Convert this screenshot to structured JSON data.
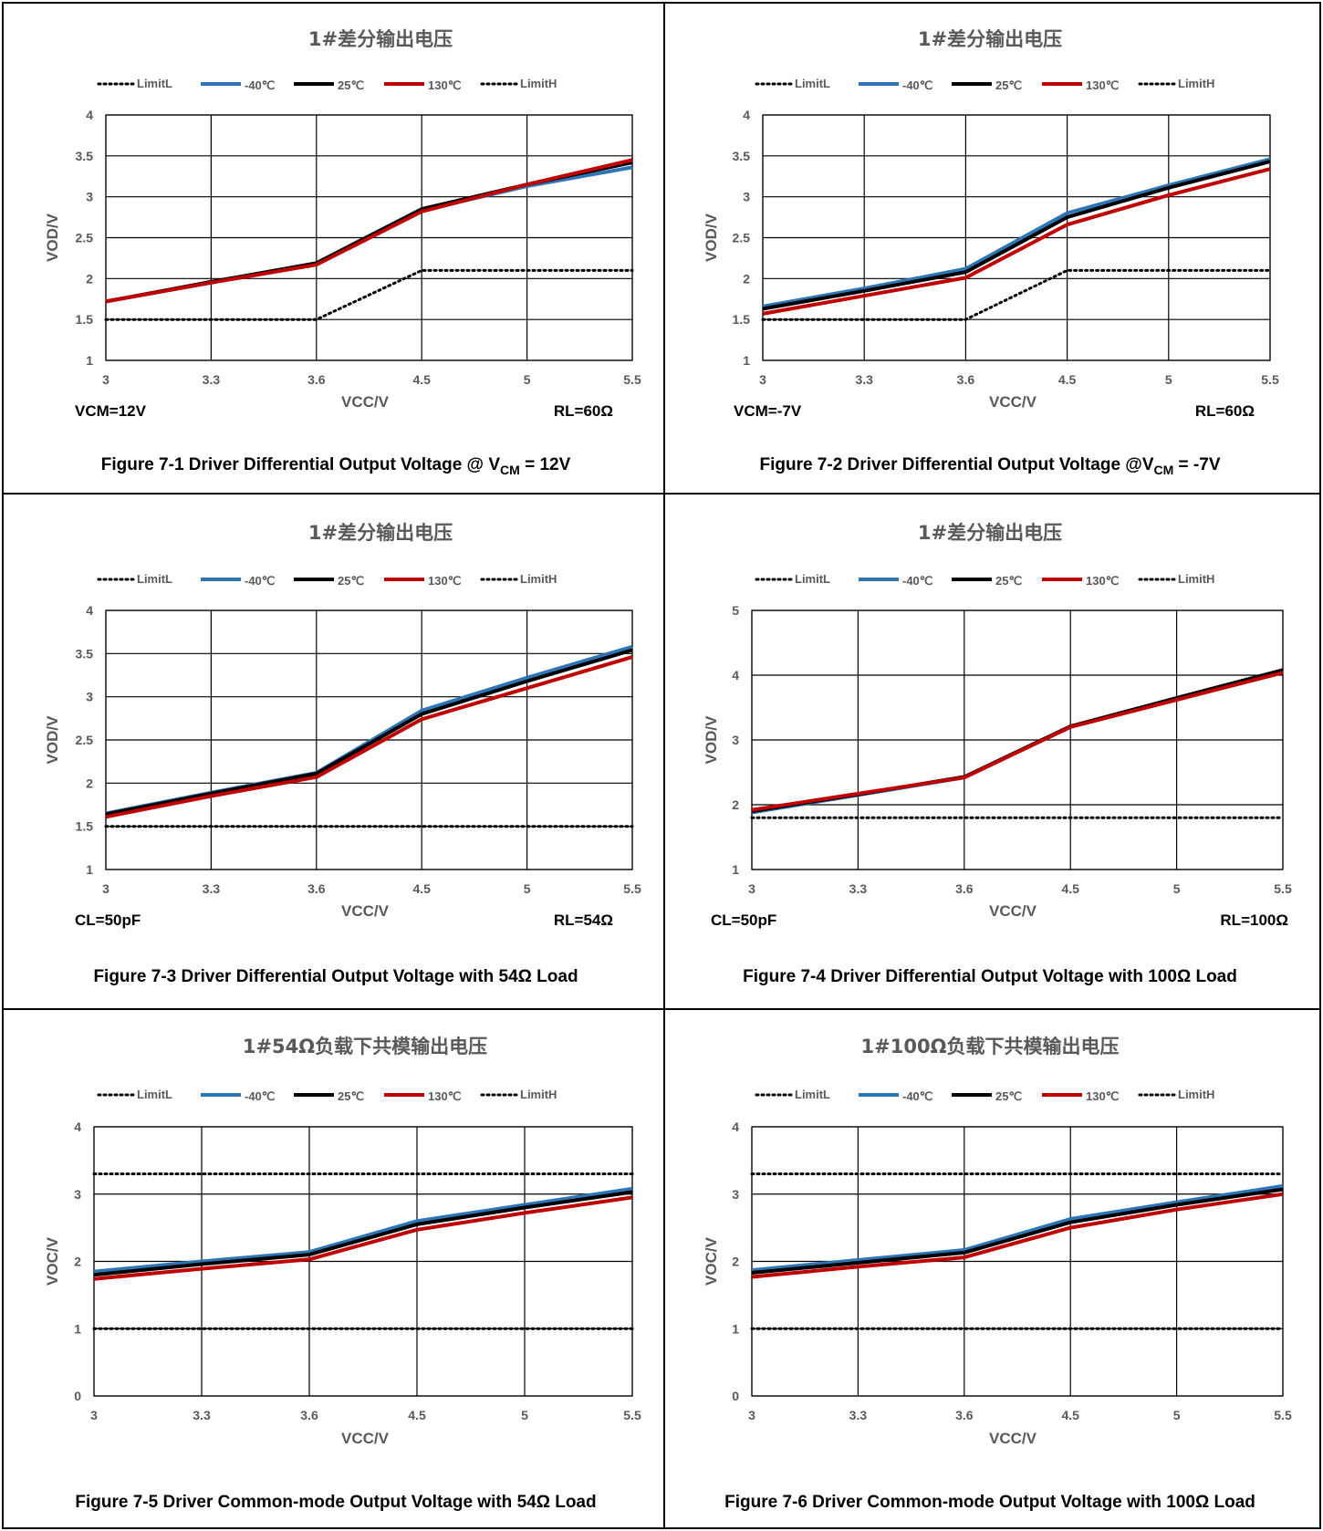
{
  "legend_labels": [
    "LimitL",
    "-40℃",
    "25℃",
    "130℃",
    "LimitH"
  ],
  "colors": {
    "limit": "#000000",
    "m40": "#2E75B6",
    "c25": "#000000",
    "c130": "#C00000",
    "text": "#595959"
  },
  "chart_data": [
    {
      "type": "line",
      "title": "1#差分输出电压",
      "caption": {
        "pre": "Figure 7-1 Driver Differential Output Voltage @ V",
        "sub": "CM",
        "post": " = 12V"
      },
      "note_left": "VCM=12V",
      "note_right": "RL=60Ω",
      "xlabel": "VCC/V",
      "ylabel": "VOD/V",
      "categories": [
        "3",
        "3.3",
        "3.6",
        "4.5",
        "5",
        "5.5"
      ],
      "ylim": [
        1,
        4
      ],
      "yticks": [
        "1",
        "1.5",
        "2",
        "2.5",
        "3",
        "3.5",
        "4"
      ],
      "series": [
        {
          "name": "LimitL",
          "values": [
            1.5,
            1.5,
            1.5,
            2.1,
            2.1,
            2.1
          ]
        },
        {
          "name": "-40℃",
          "values": [
            1.72,
            1.95,
            2.18,
            2.83,
            3.13,
            3.36
          ]
        },
        {
          "name": "25℃",
          "values": [
            1.72,
            1.96,
            2.19,
            2.85,
            3.15,
            3.42
          ]
        },
        {
          "name": "130℃",
          "values": [
            1.72,
            1.95,
            2.17,
            2.82,
            3.15,
            3.45
          ]
        },
        {
          "name": "LimitH",
          "values": [
            null,
            null,
            null,
            null,
            null,
            null
          ]
        }
      ]
    },
    {
      "type": "line",
      "title": "1#差分输出电压",
      "caption": {
        "pre": "Figure 7-2 Driver Differential Output Voltage @V",
        "sub": "CM",
        "post": " = -7V"
      },
      "note_left": "VCM=-7V",
      "note_right": "RL=60Ω",
      "xlabel": "VCC/V",
      "ylabel": "VOD/V",
      "categories": [
        "3",
        "3.3",
        "3.6",
        "4.5",
        "5",
        "5.5"
      ],
      "ylim": [
        1,
        4
      ],
      "yticks": [
        "1",
        "1.5",
        "2",
        "2.5",
        "3",
        "3.5",
        "4"
      ],
      "series": [
        {
          "name": "LimitL",
          "values": [
            1.5,
            1.5,
            1.5,
            2.1,
            2.1,
            2.1
          ]
        },
        {
          "name": "-40℃",
          "values": [
            1.66,
            1.88,
            2.12,
            2.8,
            3.14,
            3.46
          ]
        },
        {
          "name": "25℃",
          "values": [
            1.63,
            1.85,
            2.08,
            2.75,
            3.11,
            3.43
          ]
        },
        {
          "name": "130℃",
          "values": [
            1.57,
            1.79,
            2.01,
            2.66,
            3.02,
            3.34
          ]
        },
        {
          "name": "LimitH",
          "values": [
            null,
            null,
            null,
            null,
            null,
            null
          ]
        }
      ]
    },
    {
      "type": "line",
      "title": "1#差分输出电压",
      "caption": {
        "pre": "Figure 7-3 Driver Differential Output Voltage with 54Ω Load",
        "sub": "",
        "post": ""
      },
      "note_left": "CL=50pF",
      "note_right": "RL=54Ω",
      "xlabel": "VCC/V",
      "ylabel": "VOD/V",
      "categories": [
        "3",
        "3.3",
        "3.6",
        "4.5",
        "5",
        "5.5"
      ],
      "ylim": [
        1,
        4
      ],
      "yticks": [
        "1",
        "1.5",
        "2",
        "2.5",
        "3",
        "3.5",
        "4"
      ],
      "series": [
        {
          "name": "LimitL",
          "values": [
            1.5,
            1.5,
            1.5,
            1.5,
            1.5,
            1.5
          ]
        },
        {
          "name": "-40℃",
          "values": [
            1.65,
            1.89,
            2.12,
            2.84,
            3.22,
            3.58
          ]
        },
        {
          "name": "25℃",
          "values": [
            1.64,
            1.88,
            2.11,
            2.8,
            3.18,
            3.54
          ]
        },
        {
          "name": "130℃",
          "values": [
            1.61,
            1.85,
            2.07,
            2.74,
            3.1,
            3.46
          ]
        },
        {
          "name": "LimitH",
          "values": [
            null,
            null,
            null,
            null,
            null,
            null
          ]
        }
      ]
    },
    {
      "type": "line",
      "title": "1#差分输出电压",
      "caption": {
        "pre": "Figure 7-4 Driver Differential Output Voltage  with 100Ω Load",
        "sub": "",
        "post": ""
      },
      "note_left": "CL=50pF",
      "note_right": "RL=100Ω",
      "xlabel": "VCC/V",
      "ylabel": "VOD/V",
      "categories": [
        "3",
        "3.3",
        "3.6",
        "4.5",
        "5",
        "5.5"
      ],
      "ylim": [
        1,
        5
      ],
      "yticks": [
        "1",
        "2",
        "3",
        "4",
        "5"
      ],
      "series": [
        {
          "name": "LimitL",
          "values": [
            1.8,
            1.8,
            1.8,
            1.8,
            1.8,
            1.8
          ]
        },
        {
          "name": "-40℃",
          "values": [
            1.88,
            2.15,
            2.42,
            3.2,
            3.64,
            4.07
          ]
        },
        {
          "name": "25℃",
          "values": [
            1.9,
            2.16,
            2.43,
            3.21,
            3.65,
            4.08
          ]
        },
        {
          "name": "130℃",
          "values": [
            1.92,
            2.17,
            2.42,
            3.2,
            3.62,
            4.04
          ]
        },
        {
          "name": "LimitH",
          "values": [
            null,
            null,
            null,
            null,
            null,
            null
          ]
        }
      ]
    },
    {
      "type": "line",
      "title": "1#54Ω负载下共模输出电压",
      "caption": {
        "pre": "Figure 7-5 Driver Common-mode Output Voltage with 54Ω Load",
        "sub": "",
        "post": ""
      },
      "note_left": "",
      "note_right": "",
      "xlabel": "VCC/V",
      "ylabel": "VOC/V",
      "categories": [
        "3",
        "3.3",
        "3.6",
        "4.5",
        "5",
        "5.5"
      ],
      "ylim": [
        0,
        4
      ],
      "yticks": [
        "0",
        "1",
        "2",
        "3",
        "4"
      ],
      "series": [
        {
          "name": "LimitL",
          "values": [
            1,
            1,
            1,
            1,
            1,
            1
          ]
        },
        {
          "name": "-40℃",
          "values": [
            1.85,
            2.0,
            2.14,
            2.6,
            2.84,
            3.08
          ]
        },
        {
          "name": "25℃",
          "values": [
            1.8,
            1.96,
            2.1,
            2.55,
            2.8,
            3.03
          ]
        },
        {
          "name": "130℃",
          "values": [
            1.74,
            1.89,
            2.03,
            2.47,
            2.72,
            2.95
          ]
        },
        {
          "name": "LimitH",
          "values": [
            3.3,
            3.3,
            3.3,
            3.3,
            3.3,
            3.3
          ]
        }
      ]
    },
    {
      "type": "line",
      "title": "1#100Ω负载下共模输出电压",
      "caption": {
        "pre": "Figure 7-6 Driver Common-mode Output Voltage with 100Ω Load",
        "sub": "",
        "post": ""
      },
      "note_left": "",
      "note_right": "",
      "xlabel": "VCC/V",
      "ylabel": "VOC/V",
      "categories": [
        "3",
        "3.3",
        "3.6",
        "4.5",
        "5",
        "5.5"
      ],
      "ylim": [
        0,
        4
      ],
      "yticks": [
        "0",
        "1",
        "2",
        "3",
        "4"
      ],
      "series": [
        {
          "name": "LimitL",
          "values": [
            1,
            1,
            1,
            1,
            1,
            1
          ]
        },
        {
          "name": "-40℃",
          "values": [
            1.87,
            2.02,
            2.17,
            2.63,
            2.88,
            3.12
          ]
        },
        {
          "name": "25℃",
          "values": [
            1.83,
            1.98,
            2.13,
            2.58,
            2.84,
            3.07
          ]
        },
        {
          "name": "130℃",
          "values": [
            1.77,
            1.92,
            2.06,
            2.5,
            2.77,
            3.0
          ]
        },
        {
          "name": "LimitH",
          "values": [
            3.3,
            3.3,
            3.3,
            3.3,
            3.3,
            3.3
          ]
        }
      ]
    }
  ]
}
